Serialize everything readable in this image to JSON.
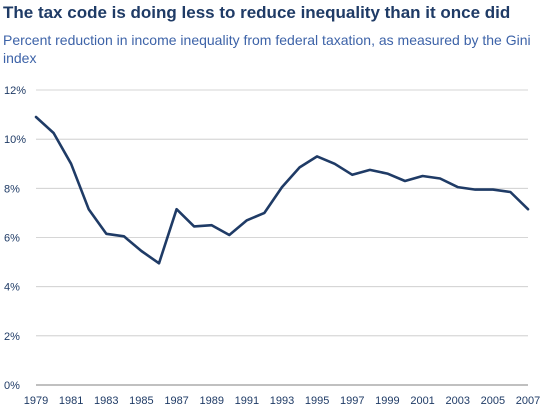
{
  "title": "The tax code is doing less to reduce inequality than it once did",
  "subtitle": "Percent reduction in income inequality from federal taxation, as measured by the Gini index",
  "chart_data": {
    "type": "line",
    "title": "The tax code is doing less to reduce inequality than it once did",
    "subtitle": "Percent reduction in income inequality from federal taxation, as measured by the Gini index",
    "xlabel": "",
    "ylabel": "",
    "x": [
      1979,
      1980,
      1981,
      1982,
      1983,
      1984,
      1985,
      1986,
      1987,
      1988,
      1989,
      1990,
      1991,
      1992,
      1993,
      1994,
      1995,
      1996,
      1997,
      1998,
      1999,
      2000,
      2001,
      2002,
      2003,
      2004,
      2005,
      2006,
      2007
    ],
    "series": [
      {
        "values": [
          10.9,
          10.25,
          9.0,
          7.15,
          6.15,
          6.05,
          5.45,
          4.95,
          7.15,
          6.45,
          6.5,
          6.1,
          6.7,
          7.0,
          8.05,
          8.85,
          9.3,
          9.0,
          8.55,
          8.75,
          8.6,
          8.3,
          8.5,
          8.4,
          8.05,
          7.95,
          7.95,
          7.85,
          7.15
        ]
      }
    ],
    "xticks": [
      "1979",
      "1981",
      "1983",
      "1985",
      "1987",
      "1989",
      "1991",
      "1993",
      "1995",
      "1997",
      "1999",
      "2001",
      "2003",
      "2005",
      "2007"
    ],
    "yticks": [
      "0%",
      "2%",
      "4%",
      "6%",
      "8%",
      "10%",
      "12%"
    ],
    "ylim": [
      0,
      12
    ],
    "xlim": [
      1979,
      2007
    ],
    "grid": "horizontal",
    "line_color": "#1f3b66",
    "grid_color": "#c8c8c8",
    "text_color": "#1f3b66"
  }
}
